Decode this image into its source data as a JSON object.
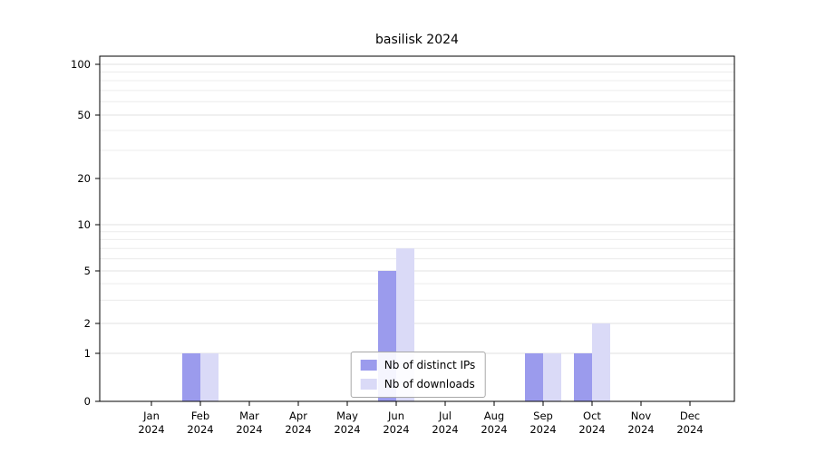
{
  "page": {
    "background": "#ffffff"
  },
  "chart_data": {
    "type": "bar",
    "title": "basilisk 2024",
    "categories": [
      "Jan 2024",
      "Feb 2024",
      "Mar 2024",
      "Apr 2024",
      "May 2024",
      "Jun 2024",
      "Jul 2024",
      "Aug 2024",
      "Sep 2024",
      "Oct 2024",
      "Nov 2024",
      "Dec 2024"
    ],
    "series": [
      {
        "name": "Nb of distinct IPs",
        "color": "#9b9bed",
        "values": [
          0,
          1,
          0,
          0,
          0,
          5,
          0,
          0,
          1,
          1,
          0,
          0
        ]
      },
      {
        "name": "Nb of downloads",
        "color": "#dadaf7",
        "values": [
          0,
          1,
          0,
          0,
          0,
          7,
          0,
          0,
          1,
          2,
          0,
          0
        ]
      }
    ],
    "yscale": "symlog",
    "yticks": [
      0,
      1,
      2,
      5,
      10,
      20,
      50,
      100
    ],
    "minor_gridlines": [
      3,
      4,
      6,
      7,
      8,
      9,
      30,
      40,
      60,
      70,
      80,
      90
    ],
    "ylim": [
      0,
      112
    ],
    "grid": true,
    "legend_position": "lower center"
  }
}
